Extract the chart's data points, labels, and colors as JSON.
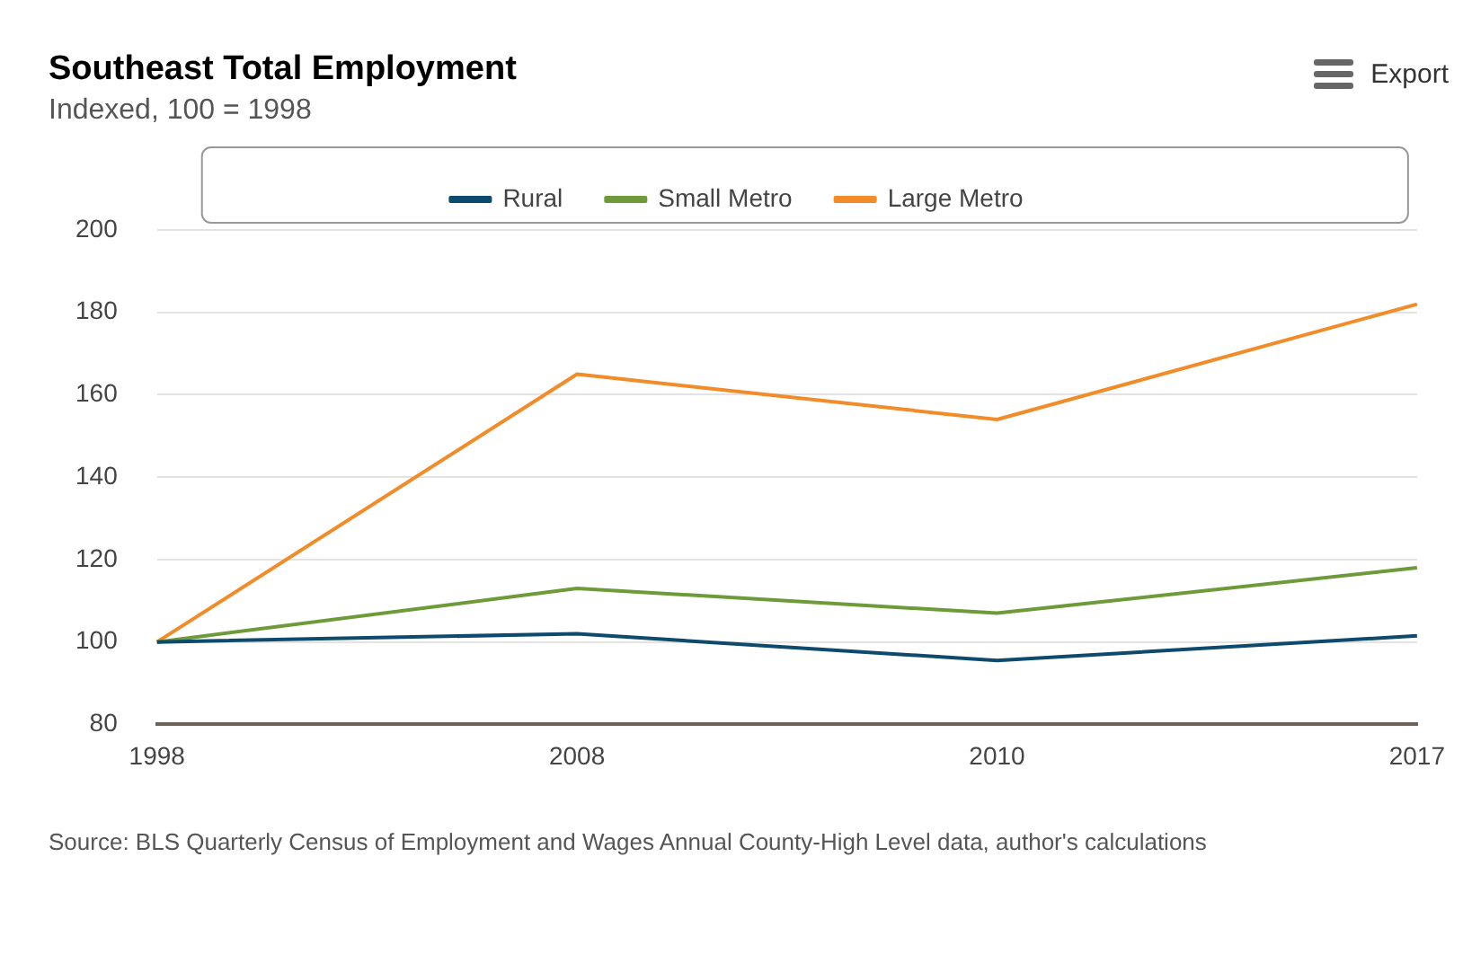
{
  "chart_data": {
    "type": "line",
    "title": "Southeast Total Employment",
    "subtitle": "Indexed, 100 = 1998",
    "categories": [
      "1998",
      "2008",
      "2010",
      "2017"
    ],
    "series": [
      {
        "name": "Rural",
        "color": "#0e4a6e",
        "values": [
          100,
          102,
          95.5,
          101.5
        ]
      },
      {
        "name": "Small Metro",
        "color": "#6f9a3a",
        "values": [
          100,
          113,
          107,
          118
        ]
      },
      {
        "name": "Large Metro",
        "color": "#f28c28",
        "values": [
          100,
          165,
          154,
          182
        ]
      }
    ],
    "ylim": [
      80,
      200
    ],
    "yticks": [
      80,
      100,
      120,
      140,
      160,
      180,
      200
    ],
    "grid": "y",
    "legend": "top",
    "marker": "none",
    "line_style": "solid",
    "annotations": [
      "Export",
      "Source: BLS Quarterly Census of Employment and Wages Annual County-High Level data, author's calculations"
    ]
  }
}
